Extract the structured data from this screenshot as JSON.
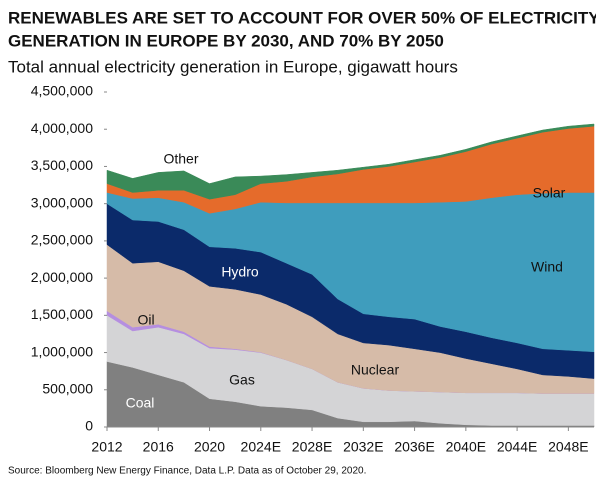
{
  "chart_data": {
    "type": "stacked_area",
    "title": [
      "RENEWABLES ARE SET TO ACCOUNT FOR OVER 50% OF ELECTRICITY",
      "GENERATION IN EUROPE BY 2030, AND 70% BY 2050"
    ],
    "subtitle": "Total annual electricity generation in Europe, gigawatt hours",
    "source": "Source: Bloomberg New Energy Finance, Data L.P. Data as of October 29, 2020.",
    "x": [
      2012,
      2014,
      2016,
      2018,
      2020,
      2022,
      2024,
      2026,
      2028,
      2030,
      2032,
      2034,
      2036,
      2038,
      2040,
      2042,
      2044,
      2046,
      2048,
      2050
    ],
    "series": [
      {
        "name": "Coal",
        "color": "#808080",
        "label_color": "#ffffff",
        "values": [
          880000,
          800000,
          700000,
          600000,
          380000,
          340000,
          280000,
          260000,
          230000,
          120000,
          70000,
          70000,
          80000,
          50000,
          30000,
          20000,
          20000,
          20000,
          20000,
          20000
        ]
      },
      {
        "name": "Gas",
        "color": "#d4d4d6",
        "label_color": "#111111",
        "values": [
          620000,
          490000,
          640000,
          650000,
          680000,
          700000,
          720000,
          640000,
          550000,
          480000,
          450000,
          420000,
          400000,
          420000,
          430000,
          440000,
          440000,
          430000,
          430000,
          430000
        ]
      },
      {
        "name": "Oil",
        "color": "#b58ee0",
        "label_color": "#111111",
        "values": [
          60000,
          50000,
          40000,
          30000,
          20000,
          10000,
          5000,
          0,
          0,
          0,
          0,
          0,
          0,
          0,
          0,
          0,
          0,
          0,
          0,
          0
        ]
      },
      {
        "name": "Nuclear",
        "color": "#d6bba8",
        "label_color": "#111111",
        "values": [
          890000,
          860000,
          840000,
          820000,
          810000,
          800000,
          775000,
          750000,
          700000,
          650000,
          610000,
          610000,
          570000,
          530000,
          460000,
          390000,
          320000,
          250000,
          230000,
          200000
        ]
      },
      {
        "name": "Hydro",
        "color": "#0b2a6a",
        "label_color": "#ffffff",
        "values": [
          550000,
          580000,
          540000,
          550000,
          530000,
          550000,
          570000,
          550000,
          570000,
          470000,
          390000,
          380000,
          400000,
          350000,
          360000,
          350000,
          350000,
          350000,
          350000,
          360000
        ]
      },
      {
        "name": "Wind",
        "color": "#3f9dbd",
        "label_color": "#111111",
        "values": [
          150000,
          290000,
          320000,
          370000,
          450000,
          530000,
          670000,
          810000,
          960000,
          1290000,
          1490000,
          1530000,
          1560000,
          1670000,
          1750000,
          1880000,
          1990000,
          2090000,
          2120000,
          2140000
        ]
      },
      {
        "name": "Solar",
        "color": "#e56b2b",
        "label_color": "#111111",
        "values": [
          120000,
          80000,
          100000,
          160000,
          190000,
          190000,
          250000,
          290000,
          350000,
          390000,
          450000,
          490000,
          550000,
          600000,
          670000,
          720000,
          760000,
          820000,
          860000,
          890000
        ]
      },
      {
        "name": "Other",
        "color": "#3a8a58",
        "label_color": "#111111",
        "values": [
          180000,
          190000,
          240000,
          260000,
          210000,
          240000,
          100000,
          90000,
          60000,
          50000,
          30000,
          30000,
          30000,
          30000,
          30000,
          30000,
          30000,
          30000,
          30000,
          30000
        ]
      }
    ],
    "xlim": [
      2012,
      2050
    ],
    "xticks": [
      2012,
      2016,
      2020,
      {
        "value": 2024,
        "label": "2024E"
      },
      {
        "value": 2028,
        "label": "2028E"
      },
      {
        "value": 2032,
        "label": "2032E"
      },
      {
        "value": 2036,
        "label": "2036E"
      },
      {
        "value": 2040,
        "label": "2040E"
      },
      {
        "value": 2044,
        "label": "2044E"
      },
      {
        "value": 2048,
        "label": "2048E"
      }
    ],
    "ylim": [
      0,
      4500000
    ],
    "yticks": [
      0,
      {
        "value": 500000,
        "label": "500,000"
      },
      {
        "value": 1000000,
        "label": "1,000,000"
      },
      {
        "value": 1500000,
        "label": "1,500,000"
      },
      {
        "value": 2000000,
        "label": "2,000,000"
      },
      {
        "value": 2500000,
        "label": "2,500,000"
      },
      {
        "value": 3000000,
        "label": "3,000,000"
      },
      {
        "value": 3500000,
        "label": "3,500,000"
      },
      {
        "value": 4000000,
        "label": "4,000,000"
      },
      {
        "value": 4500000,
        "label": "4,500,000"
      }
    ],
    "grid": false
  }
}
